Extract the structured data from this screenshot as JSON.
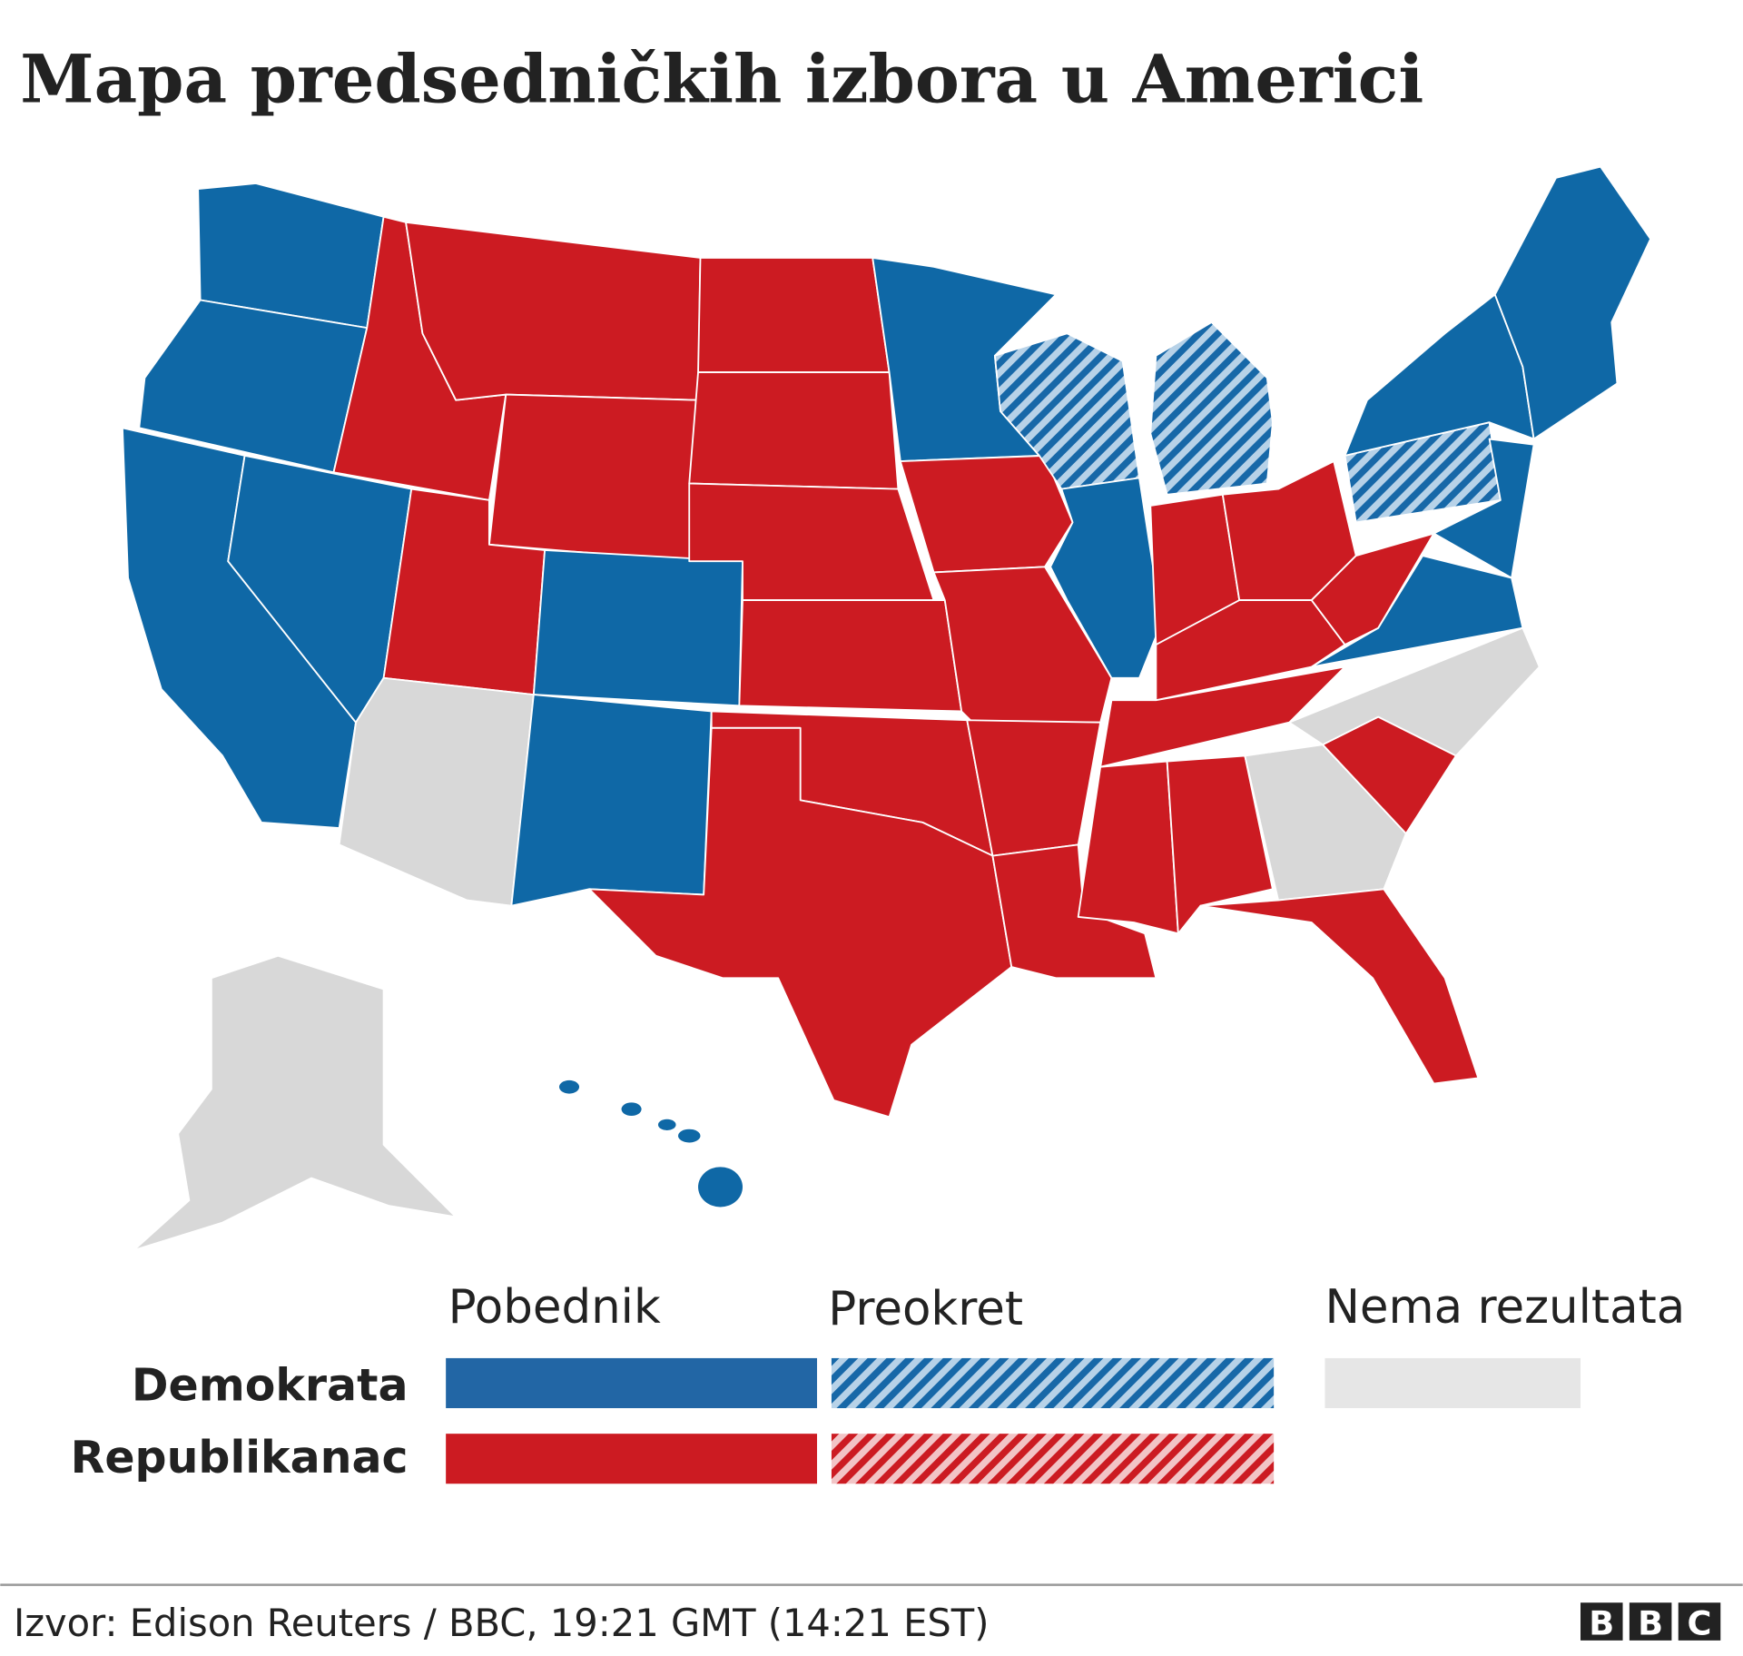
{
  "title": "Mapa predsedničkih izbora u Americi",
  "legend": {
    "columns": [
      "Pobednik",
      "Preokret",
      "Nema rezultata"
    ],
    "rows": [
      "Demokrata",
      "Republikanac"
    ]
  },
  "source": "Izvor: Edison Reuters / BBC, 19:21 GMT (14:21 EST)",
  "logo": [
    "B",
    "B",
    "C"
  ]
}
